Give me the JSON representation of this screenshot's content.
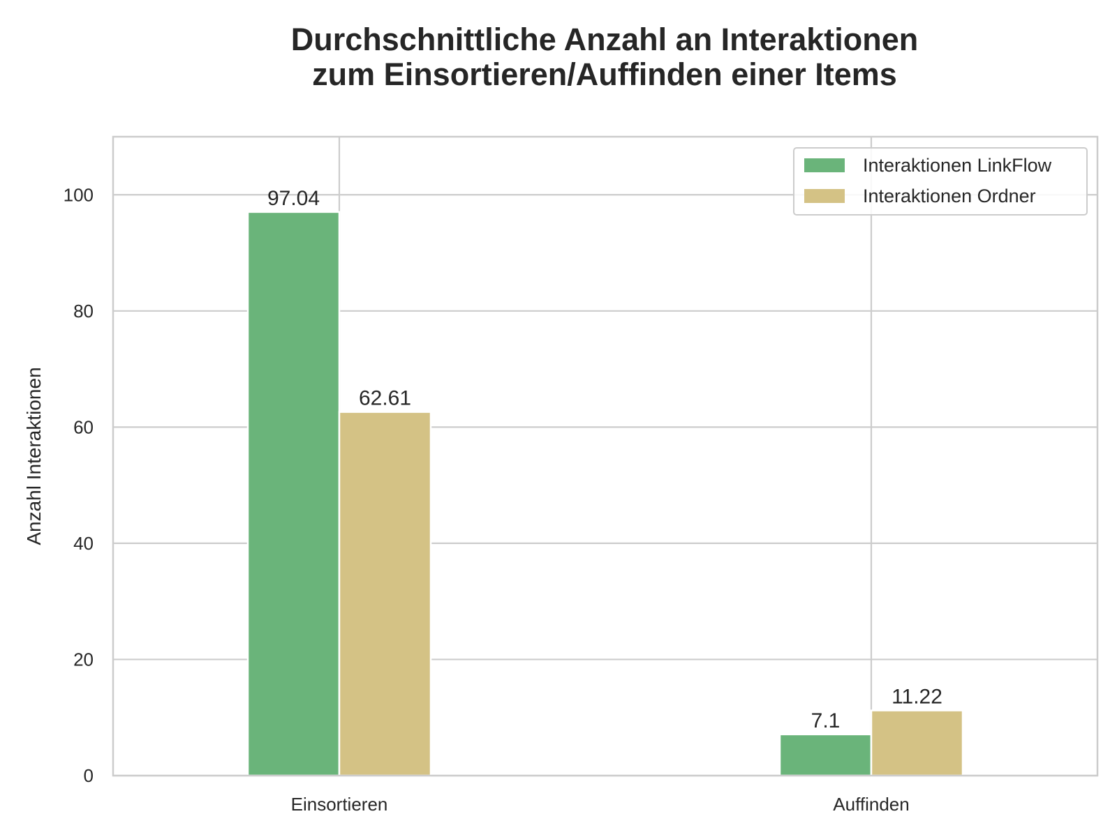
{
  "chart_data": {
    "type": "bar",
    "title_lines": [
      "Durchschnittliche Anzahl an Interaktionen",
      "zum Einsortieren/Auffinden einer Items"
    ],
    "xlabel": "",
    "ylabel": "Anzahl Interaktionen",
    "categories": [
      "Einsortieren",
      "Auffinden"
    ],
    "series": [
      {
        "name": "Interaktionen LinkFlow",
        "values": [
          97.04,
          7.1
        ],
        "value_labels": [
          "97.04",
          "7.1"
        ],
        "color": "#6ab47a"
      },
      {
        "name": "Interaktionen Ordner",
        "values": [
          62.61,
          11.22
        ],
        "value_labels": [
          "62.61",
          "11.22"
        ],
        "color": "#d4c285"
      }
    ],
    "ylim": [
      0,
      110
    ],
    "yticks": [
      0,
      20,
      40,
      60,
      80,
      100
    ],
    "ytick_labels": [
      "0",
      "20",
      "40",
      "60",
      "80",
      "100"
    ],
    "grid": true,
    "legend_position": "top-right"
  }
}
